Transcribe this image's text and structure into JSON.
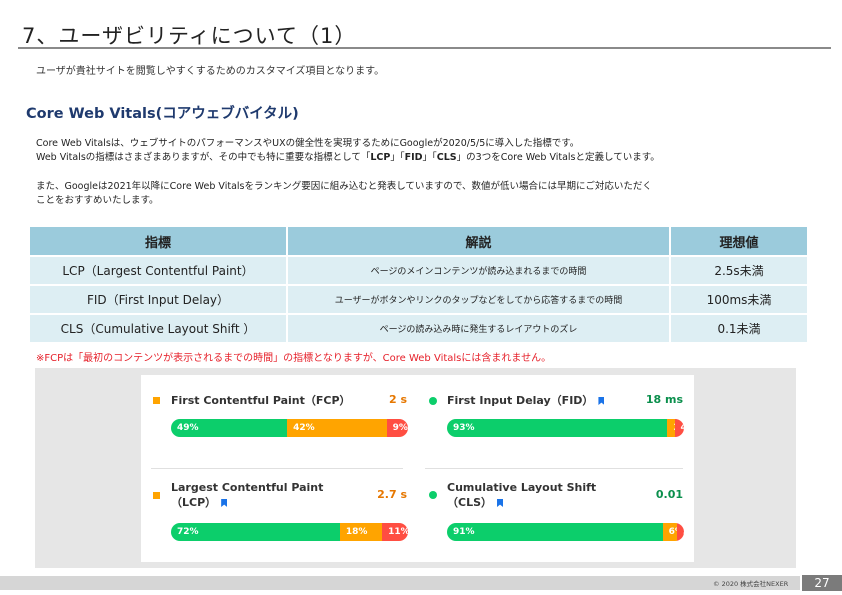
{
  "header": {
    "title": "7、ユーザビリティについて（1）",
    "subtitle": "ユーザが貴社サイトを閲覧しやすくするためのカスタマイズ項目となります。"
  },
  "section": {
    "heading": "Core Web Vitals(コアウェブバイタル)",
    "para1_line1": "Core Web Vitalsは、ウェブサイトのパフォーマンスやUXの健全性を実現するためにGoogleが2020/5/5に導入した指標です。",
    "para1_line2_a": "Web Vitalsの指標はさまざまありますが、その中でも特に重要な指標として「",
    "para1_line2_lcp": "LCP",
    "para1_line2_b": "」「",
    "para1_line2_fid": "FID",
    "para1_line2_c": "」「",
    "para1_line2_cls": "CLS",
    "para1_line2_d": "」の3つをCore Web Vitalsと定義しています。",
    "para2_line1": "また、Googleは2021年以降にCore Web Vitalsをランキング要因に組み込むと発表していますので、数値が低い場合には早期にご対応いただく",
    "para2_line2": "ことをおすすめいたします。"
  },
  "table": {
    "headers": [
      "指標",
      "解説",
      "理想値"
    ],
    "rows": [
      [
        "LCP（Largest Contentful Paint）",
        "ページのメインコンテンツが読み込まれるまでの時間",
        "2.5s未満"
      ],
      [
        "FID（First Input Delay）",
        "ユーザーがボタンやリンクのタップなどをしてから応答するまでの時間",
        "100ms未満"
      ],
      [
        "CLS（Cumulative Layout Shift ）",
        "ページの読み込み時に発生するレイアウトのズレ",
        "0.1未満"
      ]
    ]
  },
  "note": "※FCPは「最初のコンテンツが表示されるまでの時間」の指標となりますが、Core Web Vitalsには含まれません。",
  "metrics": [
    {
      "name": "First Contentful Paint（FCP）",
      "name_line2": "",
      "value": "2 s",
      "status": "needs-improvement",
      "marker_icon": "orange-square-icon",
      "flag": false,
      "distribution": {
        "good": "49%",
        "needs_improvement": "42%",
        "poor": "9%"
      },
      "fractions": {
        "good": 0.49,
        "ni": 0.42,
        "poor": 0.09
      }
    },
    {
      "name": "First Input Delay（FID）",
      "name_line2": "",
      "value": "18 ms",
      "status": "good",
      "marker_icon": "green-circle-icon",
      "flag": true,
      "distribution": {
        "good": "93%",
        "needs_improvement": "3%",
        "poor": "4%"
      },
      "fractions": {
        "good": 0.93,
        "ni": 0.03,
        "poor": 0.04
      }
    },
    {
      "name": "Largest Contentful Paint",
      "name_line2": "（LCP）",
      "value": "2.7 s",
      "status": "needs-improvement",
      "marker_icon": "orange-square-icon",
      "flag": true,
      "distribution": {
        "good": "72%",
        "needs_improvement": "18%",
        "poor": "11%"
      },
      "fractions": {
        "good": 0.72,
        "ni": 0.18,
        "poor": 0.11
      }
    },
    {
      "name": "Cumulative Layout Shift",
      "name_line2": "（CLS）",
      "value": "0.01",
      "status": "good",
      "marker_icon": "green-circle-icon",
      "flag": true,
      "distribution": {
        "good": "91%",
        "needs_improvement": "6%",
        "poor": "3%"
      },
      "fractions": {
        "good": 0.91,
        "ni": 0.06,
        "poor": 0.03
      }
    }
  ],
  "colors": {
    "good": "#0cce6b",
    "needs_improvement": "#ffa400",
    "poor": "#ff4e42",
    "heading_blue": "#1f3a6e",
    "note_red": "#e6202a",
    "table_header": "#9bcbdc",
    "table_cell": "#ddeef3"
  },
  "footer": {
    "copyright": "© 2020 株式会社NEXER",
    "page_number": "27"
  }
}
